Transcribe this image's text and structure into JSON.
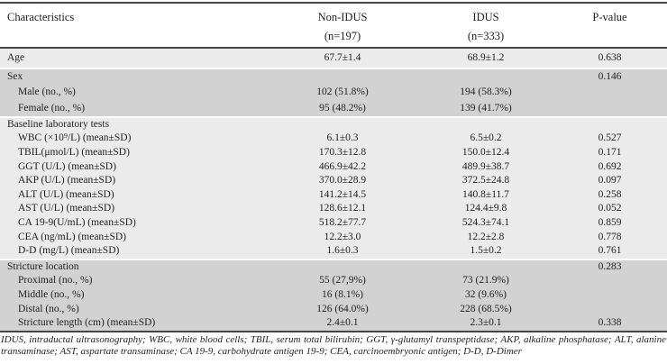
{
  "colors": {
    "section_light": "#ebebeb",
    "section_dark": "#d2d2d2",
    "rule": "#454545",
    "text": "#1f1f1f"
  },
  "table": {
    "header": {
      "characteristics": "Characteristics",
      "group1_name": "Non-IDUS",
      "group1_n": "(n=197)",
      "group2_name": "IDUS",
      "group2_n": "(n=333)",
      "pvalue": "P-value"
    },
    "sections": [
      {
        "name": "age",
        "shade": "light",
        "rows": [
          {
            "label": "Age",
            "indent": false,
            "non_idus": "67.7±1.4",
            "idus": "68.9±1.2",
            "p": "0.638"
          }
        ]
      },
      {
        "name": "sex",
        "shade": "dark",
        "rows": [
          {
            "label": "Sex",
            "indent": false,
            "non_idus": "",
            "idus": "",
            "p": "0.146"
          },
          {
            "label": "Male (no., %)",
            "indent": true,
            "non_idus": "102 (51.8%)",
            "idus": "194 (58.3%)",
            "p": ""
          },
          {
            "label": "Female (no., %)",
            "indent": true,
            "non_idus": "95 (48.2%)",
            "idus": "139 (41.7%)",
            "p": ""
          }
        ]
      },
      {
        "name": "baseline-laboratory-tests",
        "shade": "light",
        "rows": [
          {
            "label": "Baseline laboratory tests",
            "indent": false,
            "non_idus": "",
            "idus": "",
            "p": ""
          },
          {
            "label": "WBC (×10⁹/L) (mean±SD)",
            "indent": true,
            "non_idus": "6.1±0.3",
            "idus": "6.5±0.2",
            "p": "0.527"
          },
          {
            "label": "TBIL(μmol/L) (mean±SD)",
            "indent": true,
            "non_idus": "170.3±12.8",
            "idus": "150.0±12.4",
            "p": "0.171"
          },
          {
            "label": "GGT (U/L) (mean±SD)",
            "indent": true,
            "non_idus": "466.9±42.2",
            "idus": "489.9±38.7",
            "p": "0.692"
          },
          {
            "label": "AKP (U/L) (mean±SD)",
            "indent": true,
            "non_idus": "370.0±28.9",
            "idus": "372.5±24.8",
            "p": "0.097"
          },
          {
            "label": "ALT (U/L) (mean±SD)",
            "indent": true,
            "non_idus": "141.2±14.5",
            "idus": "140.8±11.7",
            "p": "0.258"
          },
          {
            "label": "AST (U/L) (mean±SD)",
            "indent": true,
            "non_idus": "128.6±12.1",
            "idus": "124.4±9.8",
            "p": "0.052"
          },
          {
            "label": "CA 19-9(U/mL) (mean±SD)",
            "indent": true,
            "non_idus": "518.2±77.7",
            "idus": "524.3±74.1",
            "p": "0.859"
          },
          {
            "label": "CEA (ng/mL) (mean±SD)",
            "indent": true,
            "non_idus": "12.2±3.0",
            "idus": "12.2±2.8",
            "p": "0.778"
          },
          {
            "label": "D-D (mg/L) (mean±SD)",
            "indent": true,
            "non_idus": "1.6±0.3",
            "idus": "1.5±0.2",
            "p": "0.761"
          }
        ]
      },
      {
        "name": "stricture-location",
        "shade": "dark",
        "rows": [
          {
            "label": "Stricture location",
            "indent": false,
            "non_idus": "",
            "idus": "",
            "p": "0.283"
          },
          {
            "label": "Proximal (no., %)",
            "indent": true,
            "non_idus": "55 (27,9%)",
            "idus": "73 (21.9%)",
            "p": ""
          },
          {
            "label": "Middle (no., %)",
            "indent": true,
            "non_idus": "16 (8.1%)",
            "idus": "32 (9.6%)",
            "p": ""
          },
          {
            "label": "Distal (no., %)",
            "indent": true,
            "non_idus": "126 (64.0%)",
            "idus": "228 (68.5%)",
            "p": ""
          },
          {
            "label": "Stricture length (cm) (mean±SD)",
            "indent": true,
            "non_idus": "2.4±0.1",
            "idus": "2.3±0.1",
            "p": "0.338"
          }
        ]
      }
    ],
    "footnote": "IDUS, intraductal ultrasonography; WBC, white blood cells; TBIL, serum total bilirubin; GGT, γ-glutamyl transpeptidase; AKP, alkaline phosphatase; ALT, alanine transaminase; AST, aspartate transaminase; CA 19-9, carbohydrate antigen 19-9; CEA, carcinoembryonic antigen; D-D, D-Dimer"
  }
}
